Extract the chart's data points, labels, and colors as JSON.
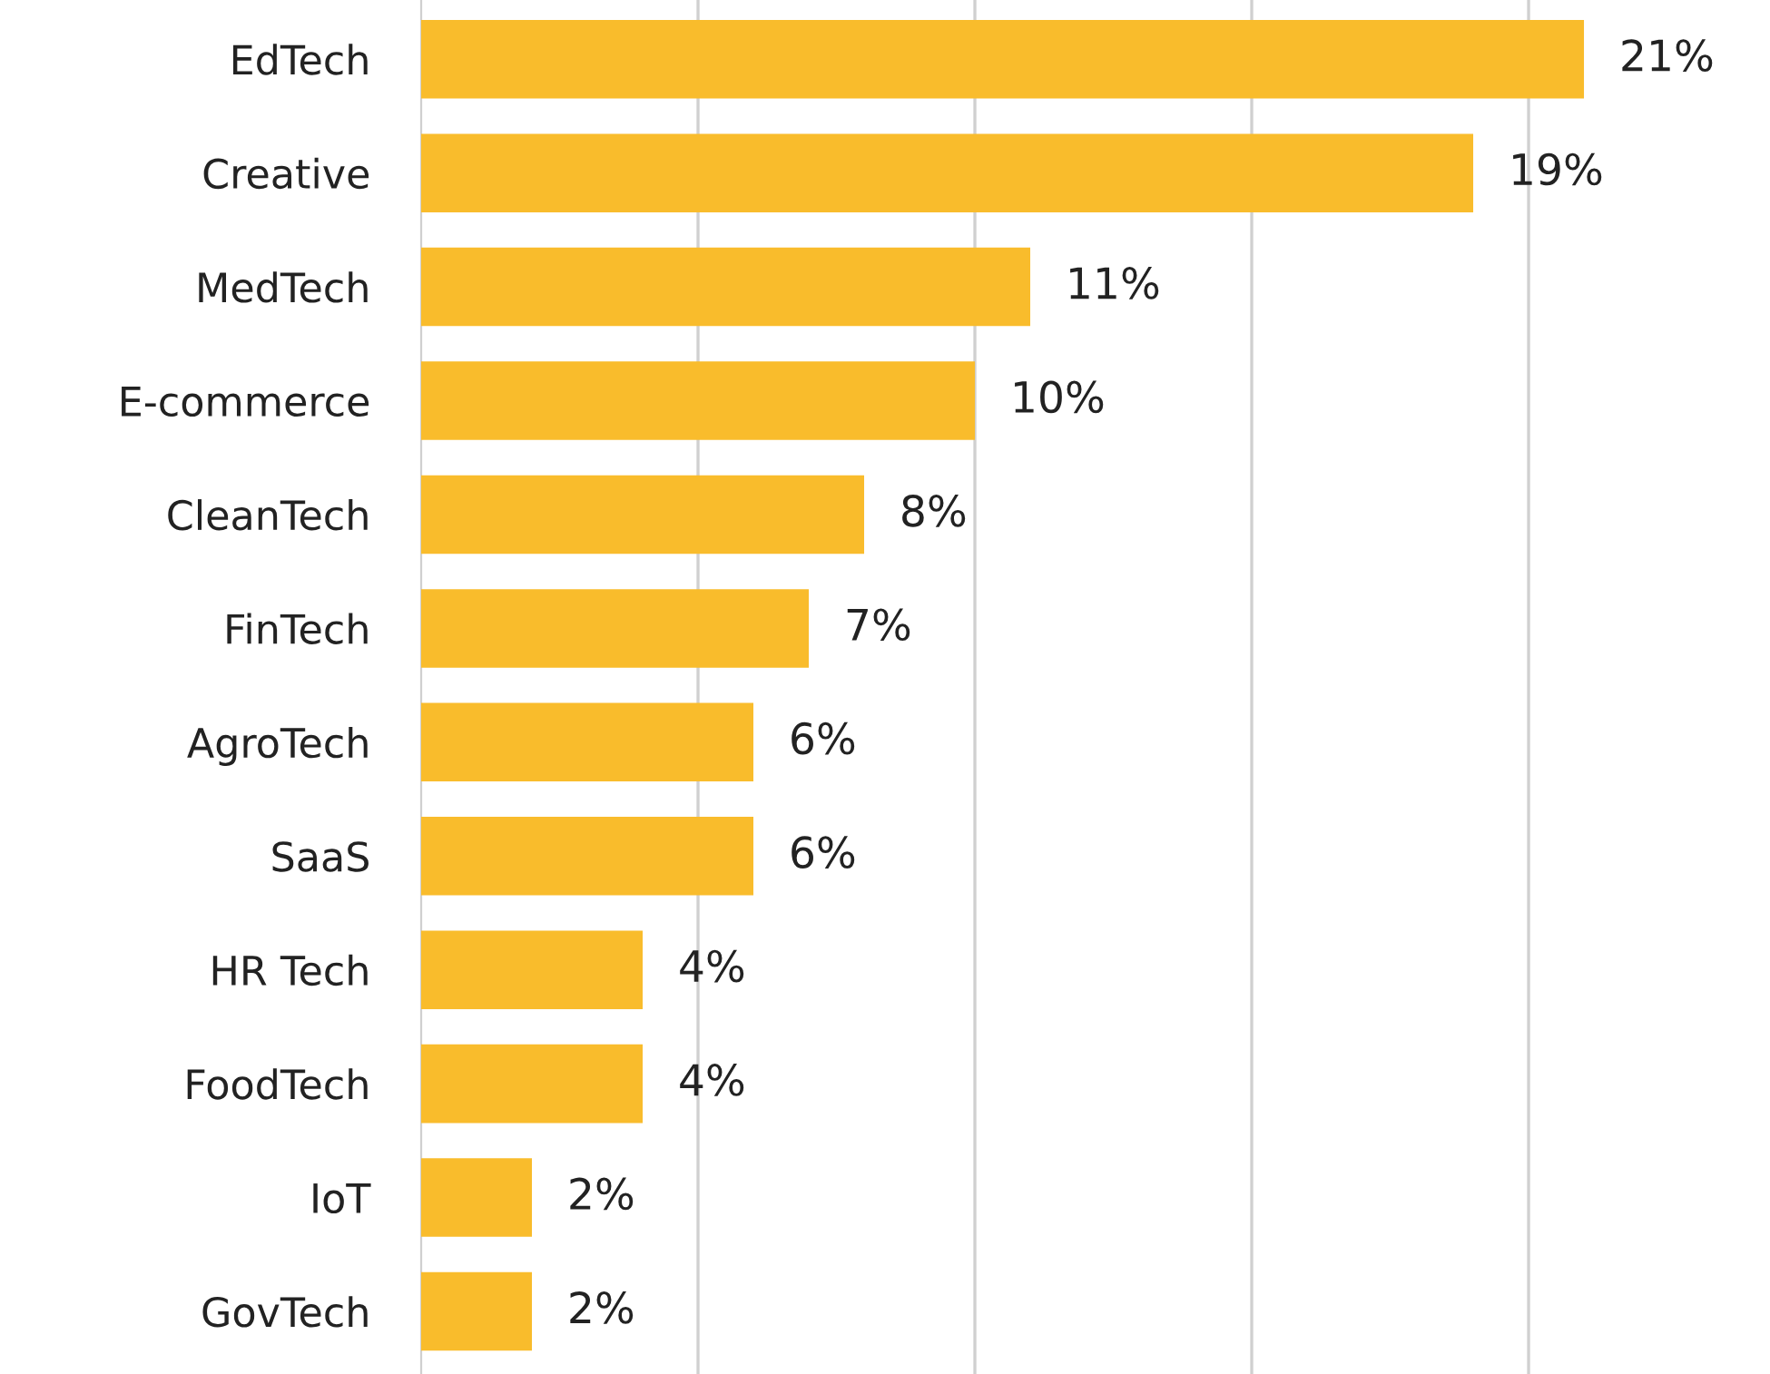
{
  "chart_data": {
    "type": "bar",
    "orientation": "horizontal",
    "categories": [
      "EdTech",
      "Creative",
      "MedTech",
      "E-commerce",
      "CleanTech",
      "FinTech",
      "AgroTech",
      "SaaS",
      "HR Tech",
      "FoodTech",
      "IoT",
      "GovTech"
    ],
    "values": [
      21,
      19,
      11,
      10,
      8,
      7,
      6,
      6,
      4,
      4,
      2,
      2
    ],
    "color": "#f9bc2c",
    "value_labels": [
      "21%",
      "19%",
      "11%",
      "10%",
      "8%",
      "7%",
      "6%",
      "6%",
      "4%",
      "4%",
      "2%",
      "2%"
    ],
    "xticks": [
      {
        "value": 5,
        "label": null
      },
      {
        "value": 10,
        "label": null
      },
      {
        "value": 15,
        "label": null
      },
      {
        "value": 20,
        "label": null
      }
    ],
    "grid": "x",
    "tick_labels": "y",
    "legend": false
  }
}
